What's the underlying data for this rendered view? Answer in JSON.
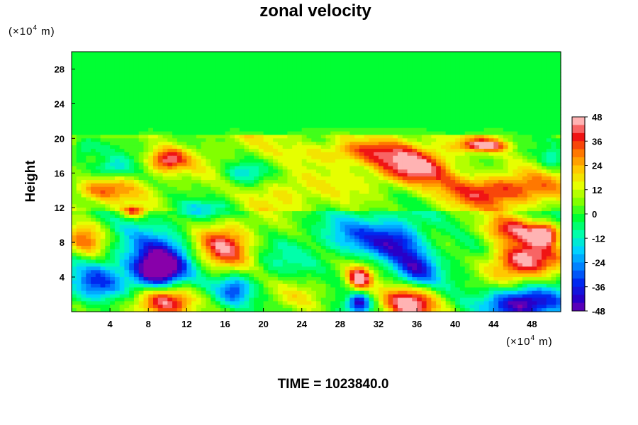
{
  "chart_data": {
    "type": "heatmap",
    "title": "zonal velocity",
    "ylabel": "Height",
    "x_unit": {
      "base": "(×10",
      "exp": "4",
      "tail": " m)"
    },
    "y_unit": {
      "base": "(×10",
      "exp": "4",
      "tail": " m)"
    },
    "xlim": [
      0,
      51
    ],
    "ylim": [
      0,
      30
    ],
    "x_ticks": [
      4,
      8,
      12,
      16,
      20,
      24,
      28,
      32,
      36,
      40,
      44,
      48
    ],
    "y_ticks": [
      4,
      8,
      12,
      16,
      20,
      24,
      28
    ],
    "colorbar": {
      "min": -48,
      "max": 48,
      "step": 4,
      "tick_labels": [
        48,
        36,
        24,
        12,
        0,
        -12,
        -24,
        -36,
        -48
      ]
    },
    "features": [
      {
        "x": 9.5,
        "y": 1.0,
        "value": 52,
        "rx": 3.0,
        "ry": 2.0
      },
      {
        "x": 35,
        "y": 1.0,
        "value": 50,
        "rx": 3.0,
        "ry": 2.0
      },
      {
        "x": 9.0,
        "y": 4.5,
        "value": -50,
        "rx": 2.4,
        "ry": 2.0
      },
      {
        "x": 9.0,
        "y": 6.0,
        "value": -32,
        "rx": 3.5,
        "ry": 2.6
      },
      {
        "x": 2.5,
        "y": 3.0,
        "value": -30,
        "rx": 2.5,
        "ry": 2.0
      },
      {
        "x": 16,
        "y": 7.5,
        "value": 38,
        "rx": 3.0,
        "ry": 2.8
      },
      {
        "x": 1.5,
        "y": 8.0,
        "value": 30,
        "rx": 2.0,
        "ry": 2.0
      },
      {
        "x": 30,
        "y": 3.8,
        "value": 46,
        "rx": 1.2,
        "ry": 1.3
      },
      {
        "x": 34,
        "y": 8.0,
        "value": -38,
        "rx": 2.6,
        "ry": 2.2
      },
      {
        "x": 36,
        "y": 5.0,
        "value": -30,
        "rx": 2.0,
        "ry": 2.0
      },
      {
        "x": 47,
        "y": 6.0,
        "value": 52,
        "rx": 3.5,
        "ry": 2.2
      },
      {
        "x": 49.5,
        "y": 9.0,
        "value": 44,
        "rx": 1.5,
        "ry": 1.2
      },
      {
        "x": 46,
        "y": 9.5,
        "value": 36,
        "rx": 3.0,
        "ry": 1.5
      },
      {
        "x": 47,
        "y": 1.0,
        "value": -52,
        "rx": 3.5,
        "ry": 1.7
      },
      {
        "x": 30,
        "y": 1.0,
        "value": -38,
        "rx": 1.0,
        "ry": 1.0
      },
      {
        "x": 17,
        "y": 2.5,
        "value": -24,
        "rx": 1.5,
        "ry": 1.5
      },
      {
        "x": 24,
        "y": 2.0,
        "value": 10,
        "rx": 3.0,
        "ry": 2.0
      },
      {
        "x": 30,
        "y": 8.5,
        "value": -18,
        "rx": 3.0,
        "ry": 2.0
      },
      {
        "x": 10,
        "y": 17.5,
        "value": 34,
        "rx": 1.8,
        "ry": 1.2
      },
      {
        "x": 36,
        "y": 16.5,
        "value": 34,
        "rx": 4.0,
        "ry": 1.8
      },
      {
        "x": 44,
        "y": 14.0,
        "value": 32,
        "rx": 6.0,
        "ry": 1.8
      },
      {
        "x": 43,
        "y": 19.2,
        "value": 40,
        "rx": 2.5,
        "ry": 0.7
      },
      {
        "x": 30,
        "y": 18.5,
        "value": 26,
        "rx": 6.0,
        "ry": 1.5
      },
      {
        "x": 3.0,
        "y": 14.0,
        "value": 22,
        "rx": 3.0,
        "ry": 1.2
      },
      {
        "x": 6.5,
        "y": 11.5,
        "value": 34,
        "rx": 1.2,
        "ry": 0.6
      },
      {
        "x": 4.0,
        "y": 16.5,
        "value": -18,
        "rx": 2.0,
        "ry": 1.0
      },
      {
        "x": 18,
        "y": 16.0,
        "value": -16,
        "rx": 2.0,
        "ry": 1.2
      },
      {
        "x": 14,
        "y": 12.0,
        "value": -16,
        "rx": 3.0,
        "ry": 0.7
      },
      {
        "x": 50,
        "y": 17.5,
        "value": -18,
        "rx": 1.0,
        "ry": 1.0
      },
      {
        "x": 1.0,
        "y": 18.5,
        "value": -14,
        "rx": 1.2,
        "ry": 1.2
      },
      {
        "x": 22,
        "y": 14.0,
        "value": 14,
        "rx": 3.0,
        "ry": 2.0
      }
    ]
  },
  "footer": {
    "time_label": "TIME = 1023840.0"
  },
  "colors": {
    "background": "#ffffff",
    "axis": "#000000",
    "colormap": "rainbow: purple (#8800aa) → blue → cyan → green (#00ff33) → yellow → orange → red → pink (#ffb3b3)"
  }
}
